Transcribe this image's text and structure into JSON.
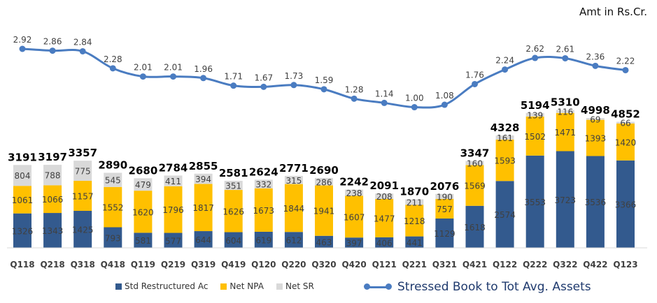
{
  "chart_data": {
    "type": "bar",
    "subtype": "stacked-bar-with-line",
    "title": "",
    "unit_note": "Amt in Rs.Cr.",
    "categories": [
      "Q118",
      "Q218",
      "Q318",
      "Q418",
      "Q119",
      "Q219",
      "Q319",
      "Q419",
      "Q120",
      "Q220",
      "Q320",
      "Q420",
      "Q121",
      "Q221",
      "Q321",
      "Q421",
      "Q122",
      "Q222",
      "Q322",
      "Q422",
      "Q123"
    ],
    "series": [
      {
        "name": "Std Restructured Ac",
        "color": "#335a8e",
        "values": [
          1326,
          1343,
          1425,
          793,
          581,
          577,
          644,
          604,
          619,
          612,
          463,
          397,
          406,
          441,
          1129,
          1618,
          2574,
          3553,
          3723,
          3536,
          3366
        ]
      },
      {
        "name": "Net NPA",
        "color": "#ffc000",
        "values": [
          1061,
          1066,
          1157,
          1552,
          1620,
          1796,
          1817,
          1626,
          1673,
          1844,
          1941,
          1607,
          1477,
          1218,
          757,
          1569,
          1593,
          1502,
          1471,
          1393,
          1420
        ]
      },
      {
        "name": "Net SR",
        "color": "#d9d9d9",
        "values": [
          804,
          788,
          775,
          545,
          479,
          411,
          394,
          351,
          332,
          315,
          286,
          238,
          208,
          211,
          190,
          160,
          161,
          139,
          116,
          69,
          66
        ]
      }
    ],
    "totals": [
      3191,
      3197,
      3357,
      2890,
      2680,
      2784,
      2855,
      2581,
      2624,
      2771,
      2690,
      2242,
      2091,
      1870,
      2076,
      3347,
      4328,
      5194,
      5310,
      4998,
      4852
    ],
    "line_series": {
      "name": "Stressed Book to Tot Avg. Assets",
      "color": "#4a7cc1",
      "values": [
        2.92,
        2.86,
        2.84,
        2.28,
        2.01,
        2.01,
        1.96,
        1.71,
        1.67,
        1.73,
        1.59,
        1.28,
        1.14,
        1.0,
        1.08,
        1.76,
        2.24,
        2.62,
        2.61,
        2.36,
        2.22
      ],
      "labels": [
        "2.92",
        "2.86",
        "2.84",
        "2.28",
        "2.01",
        "2.01",
        "1.96",
        "1.71",
        "1.67",
        "1.73",
        "1.59",
        "1.28",
        "1.14",
        "1.00",
        "1.08",
        "1.76",
        "2.24",
        "2.62",
        "2.61",
        "2.36",
        "2.22"
      ]
    },
    "xlabel": "",
    "ylabel": "",
    "ylim": [
      0,
      5500
    ],
    "line_ylim": [
      0,
      3
    ],
    "grid": false,
    "legend": [
      "Std Restructured Ac",
      "Net NPA",
      "Net SR",
      "Stressed Book to Tot Avg. Assets"
    ],
    "legend_position": "bottom"
  }
}
